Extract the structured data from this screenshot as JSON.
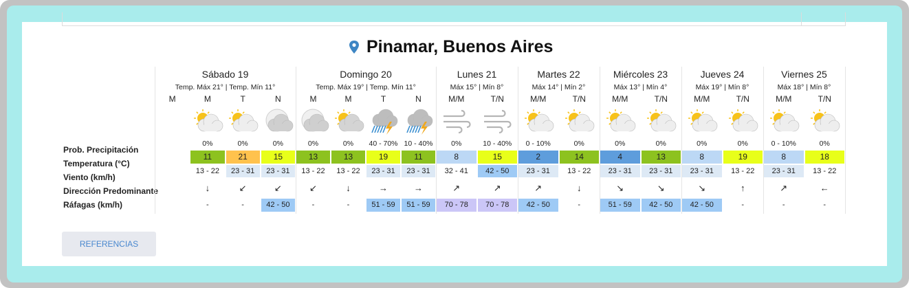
{
  "header": {
    "title": "Pinamar, Buenos Aires"
  },
  "row_labels": [
    "Prob. Precipitación",
    "Temperatura (°C)",
    "Viento (km/h)",
    "Dirección Predominante",
    "Ráfagas (km/h)"
  ],
  "days": [
    {
      "name": "Sábado 19",
      "summary": "Temp. Máx 21° | Temp. Mín 11°",
      "periods": [
        {
          "label": "M"
        },
        {
          "label": "M",
          "icon": "sun-cloud",
          "precip": "0%",
          "temp": 11,
          "temp_color": "#8dc21f",
          "wind": "13 - 22",
          "dir": "↓",
          "gust": "-"
        },
        {
          "label": "T",
          "icon": "sun-cloud",
          "precip": "0%",
          "temp": 21,
          "temp_color": "#ffc24d",
          "wind": "23 - 31",
          "wind_color": "#dde9f5",
          "dir": "↙",
          "gust": "-"
        },
        {
          "label": "N",
          "icon": "moon-cloud",
          "precip": "0%",
          "temp": 15,
          "temp_color": "#e8ff1a",
          "wind": "23 - 31",
          "wind_color": "#dde9f5",
          "dir": "↙",
          "gust": "42 - 50",
          "gust_color": "#9ecaf5"
        }
      ]
    },
    {
      "name": "Domingo 20",
      "summary": "Temp. Máx 19° | Temp. Mín 11°",
      "periods": [
        {
          "label": "M",
          "icon": "moon-cloud-dark",
          "precip": "0%",
          "temp": 13,
          "temp_color": "#8dc21f",
          "wind": "13 - 22",
          "dir": "↙",
          "gust": "-"
        },
        {
          "label": "M",
          "icon": "sun-cloud-dark",
          "precip": "0%",
          "temp": 13,
          "temp_color": "#8dc21f",
          "wind": "13 - 22",
          "dir": "↓",
          "gust": "-"
        },
        {
          "label": "T",
          "icon": "storm",
          "precip": "40 - 70%",
          "temp": 19,
          "temp_color": "#e8ff1a",
          "wind": "23 - 31",
          "wind_color": "#dde9f5",
          "dir": "→",
          "gust": "51 - 59",
          "gust_color": "#9ecaf5"
        },
        {
          "label": "N",
          "icon": "storm",
          "precip": "10 - 40%",
          "temp": 11,
          "temp_color": "#8dc21f",
          "wind": "23 - 31",
          "wind_color": "#dde9f5",
          "dir": "→",
          "gust": "51 - 59",
          "gust_color": "#9ecaf5"
        }
      ]
    },
    {
      "name": "Lunes 21",
      "summary": "Máx 15° | Mín 8°",
      "periods": [
        {
          "label": "M/M",
          "icon": "wind",
          "precip": "0%",
          "temp": 8,
          "temp_color": "#bcd8f5",
          "wind": "32 - 41",
          "dir": "↗",
          "gust": "70 - 78",
          "gust_color": "#cbc6f7"
        },
        {
          "label": "T/N",
          "icon": "wind",
          "precip": "10 - 40%",
          "temp": 15,
          "temp_color": "#e8ff1a",
          "wind": "42 - 50",
          "wind_color": "#9ecaf5",
          "dir": "↗",
          "gust": "70 - 78",
          "gust_color": "#cbc6f7"
        }
      ]
    },
    {
      "name": "Martes 22",
      "summary": "Máx 14° | Mín 2°",
      "periods": [
        {
          "label": "M/M",
          "icon": "sun-cloud",
          "precip": "0 - 10%",
          "temp": 2,
          "temp_color": "#5e9ddc",
          "wind": "23 - 31",
          "wind_color": "#dde9f5",
          "dir": "↗",
          "gust": "42 - 50",
          "gust_color": "#9ecaf5"
        },
        {
          "label": "T/N",
          "icon": "sun-cloud",
          "precip": "0%",
          "temp": 14,
          "temp_color": "#8dc21f",
          "wind": "13 - 22",
          "dir": "↓",
          "gust": "-"
        }
      ]
    },
    {
      "name": "Miércoles 23",
      "summary": "Máx 13° | Mín 4°",
      "periods": [
        {
          "label": "M/M",
          "icon": "sun-cloud",
          "precip": "0%",
          "temp": 4,
          "temp_color": "#5e9ddc",
          "wind": "23 - 31",
          "wind_color": "#dde9f5",
          "dir": "↘",
          "gust": "51 - 59",
          "gust_color": "#9ecaf5"
        },
        {
          "label": "T/N",
          "icon": "sun-cloud",
          "precip": "0%",
          "temp": 13,
          "temp_color": "#8dc21f",
          "wind": "23 - 31",
          "wind_color": "#dde9f5",
          "dir": "↘",
          "gust": "42 - 50",
          "gust_color": "#9ecaf5"
        }
      ]
    },
    {
      "name": "Jueves 24",
      "summary": "Máx 19° | Mín 8°",
      "periods": [
        {
          "label": "M/M",
          "icon": "sun-cloud",
          "precip": "0%",
          "temp": 8,
          "temp_color": "#bcd8f5",
          "wind": "23 - 31",
          "wind_color": "#dde9f5",
          "dir": "↘",
          "gust": "42 - 50",
          "gust_color": "#9ecaf5"
        },
        {
          "label": "T/N",
          "icon": "sun-cloud",
          "precip": "0%",
          "temp": 19,
          "temp_color": "#e8ff1a",
          "wind": "13 - 22",
          "dir": "↑",
          "gust": "-"
        }
      ]
    },
    {
      "name": "Viernes 25",
      "summary": "Máx 18° | Mín 8°",
      "periods": [
        {
          "label": "M/M",
          "icon": "sun-cloud",
          "precip": "0 - 10%",
          "temp": 8,
          "temp_color": "#bcd8f5",
          "wind": "23 - 31",
          "wind_color": "#dde9f5",
          "dir": "↗",
          "gust": "-"
        },
        {
          "label": "T/N",
          "icon": "sun-cloud",
          "precip": "0%",
          "temp": 18,
          "temp_color": "#e8ff1a",
          "wind": "13 - 22",
          "dir": "←",
          "gust": "-"
        }
      ]
    }
  ],
  "button": "REFERENCIAS"
}
